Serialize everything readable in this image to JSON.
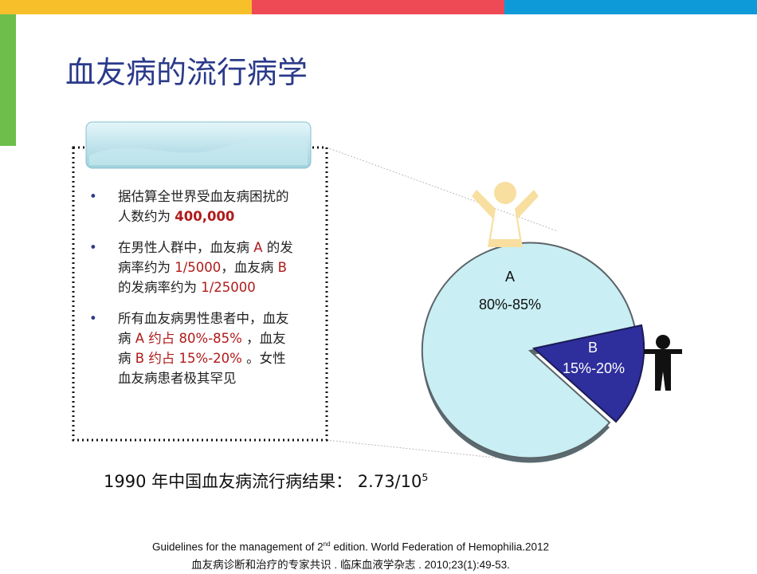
{
  "title": "血友病的流行病学",
  "bullets": [
    [
      "据估算全世界受血友病困扰的人数约为 ",
      "400,000"
    ],
    [
      "在男性人群中，血友病 ",
      "A",
      " 的发病率约为 ",
      "1/5000",
      "，血友病 ",
      "B",
      " 的发病率约为 ",
      "1/25000"
    ],
    [
      "所有血友病男性患者中，血友病 ",
      "A 约占 80%-85%",
      " ，血友病 ",
      "B 约占 15%-20%",
      " 。女性血友病患者极其罕见"
    ]
  ],
  "pie": {
    "a_label": "A",
    "a_value": "80%-85%",
    "b_label": "B",
    "b_value": "15%-20%"
  },
  "result": {
    "text": "1990 年中国血友病流行病结果： 2.73/10",
    "sup": "5"
  },
  "references": [
    {
      "before": "Guidelines for the management of 2",
      "sup": "nd",
      "after": " edition. World Federation of Hemophilia.2012"
    },
    {
      "before": "血友病诊断和治疗的专家共识 .  临床血液学杂志 . 2010;23(1):49-53."
    }
  ]
}
